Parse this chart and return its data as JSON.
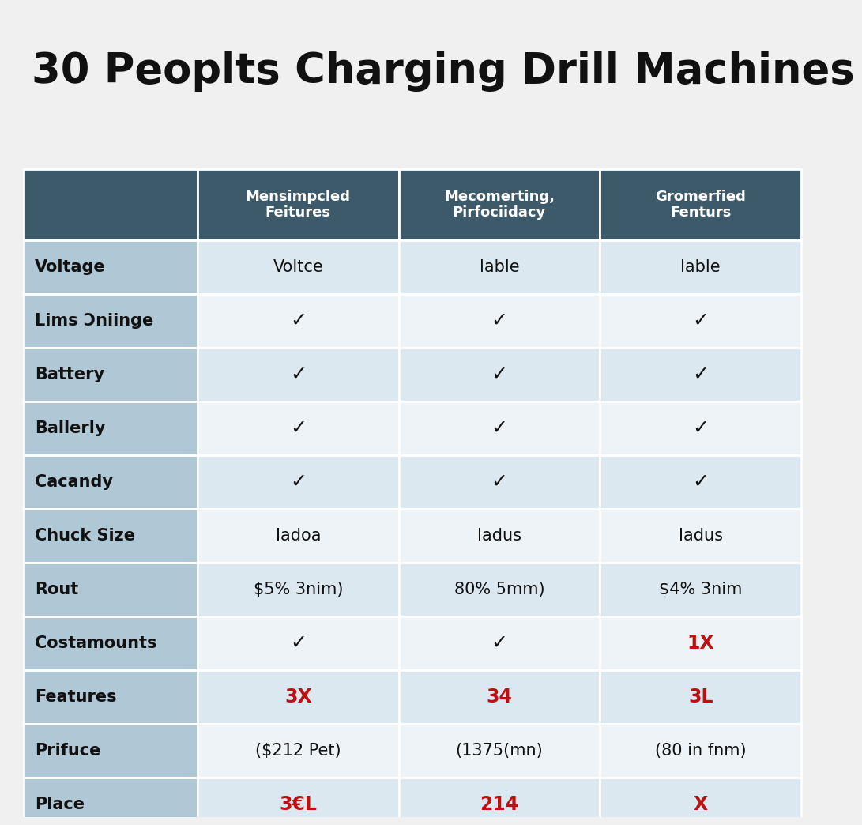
{
  "title": "30 Peoplts Charging Drill Machines",
  "header_bg": "#3d5a6b",
  "header_text_color": "#ffffff",
  "row_label_bg": "#b0c8d5",
  "row_even_bg": "#dce8ef",
  "row_odd_bg": "#edf3f7",
  "red_color": "#bb1111",
  "black_color": "#111111",
  "bg_color": "#f0f0f0",
  "columns": [
    "Mensimpcled\nFeitures",
    "Mecomerting,\nPirfociidacy",
    "Gromerfied\nFenturs"
  ],
  "rows": [
    {
      "label": "Voltage",
      "values": [
        "Voltce",
        "lable",
        "lable"
      ],
      "colors": [
        "#111111",
        "#111111",
        "#111111"
      ]
    },
    {
      "label": "Lims Ɔniinge",
      "values": [
        "✓",
        "✓",
        "✓"
      ],
      "colors": [
        "#111111",
        "#111111",
        "#111111"
      ]
    },
    {
      "label": "Battery",
      "values": [
        "✓",
        "✓",
        "✓"
      ],
      "colors": [
        "#111111",
        "#111111",
        "#111111"
      ]
    },
    {
      "label": "Ballerly",
      "values": [
        "✓",
        "✓",
        "✓"
      ],
      "colors": [
        "#111111",
        "#111111",
        "#111111"
      ]
    },
    {
      "label": "Cacandy",
      "values": [
        "✓",
        "✓",
        "✓"
      ],
      "colors": [
        "#111111",
        "#111111",
        "#111111"
      ]
    },
    {
      "label": "Chuck Size",
      "values": [
        "Iadoa",
        "Iadus",
        "Iadus"
      ],
      "colors": [
        "#111111",
        "#111111",
        "#111111"
      ]
    },
    {
      "label": "Rout",
      "values": [
        "$5% 3nim)",
        "80% 5mm)",
        "$4% 3nim"
      ],
      "colors": [
        "#111111",
        "#111111",
        "#111111"
      ]
    },
    {
      "label": "Costamounts",
      "values": [
        "✓",
        "✓",
        "1X"
      ],
      "colors": [
        "#111111",
        "#111111",
        "#bb1111"
      ]
    },
    {
      "label": "Features",
      "values": [
        "3X",
        "34",
        "3L"
      ],
      "colors": [
        "#bb1111",
        "#bb1111",
        "#bb1111"
      ]
    },
    {
      "label": "Prifuce",
      "values": [
        "($212 Pet)",
        "(1375(mn)",
        "(80 in fnm)"
      ],
      "colors": [
        "#111111",
        "#111111",
        "#111111"
      ]
    },
    {
      "label": "Place",
      "values": [
        "3€L",
        "214",
        "X"
      ],
      "colors": [
        "#bb1111",
        "#bb1111",
        "#bb1111"
      ]
    }
  ]
}
